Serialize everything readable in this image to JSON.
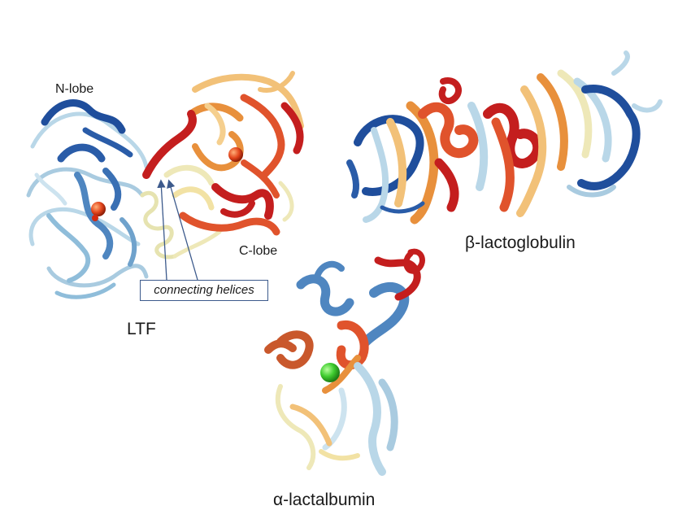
{
  "figure": {
    "labels": {
      "n_lobe": "N-lobe",
      "c_lobe": "C-lobe",
      "ltf": "LTF",
      "connecting_helices": "connecting helices",
      "beta_lactoglobulin": "β-lactoglobulin",
      "alpha_lactalbumin": "α-lactalbumin"
    },
    "colors": {
      "dark_blue": "#1f4e9c",
      "blue": "#4f86c0",
      "light_blue": "#b9d7e8",
      "pale": "#eee8b8",
      "light_orange": "#f2c178",
      "orange": "#e8903c",
      "red_orange": "#e0532c",
      "red": "#c41e1e",
      "iron_ion": "#e2451c",
      "calcium_ion": "#3fcc2f",
      "callout": "#3c5a8c"
    }
  }
}
